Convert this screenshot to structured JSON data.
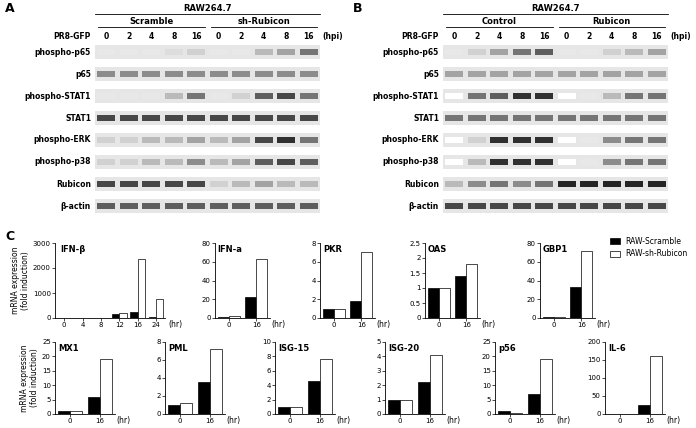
{
  "blots": [
    {
      "label": "A",
      "cell_line": "RAW264.7",
      "groups": [
        "Scramble",
        "sh-Rubicon"
      ],
      "treatment": "PR8-GFP",
      "timepoints": [
        "0",
        "2",
        "4",
        "8",
        "16"
      ],
      "time_unit": "(hpi)",
      "rows": [
        {
          "name": "phospho-p65",
          "intensity": [
            0.1,
            0.1,
            0.1,
            0.15,
            0.2,
            0.1,
            0.1,
            0.3,
            0.4,
            0.6
          ]
        },
        {
          "name": "p65",
          "intensity": [
            0.5,
            0.5,
            0.5,
            0.5,
            0.5,
            0.5,
            0.5,
            0.5,
            0.5,
            0.5
          ]
        },
        {
          "name": "phospho-STAT1",
          "intensity": [
            0.1,
            0.1,
            0.1,
            0.3,
            0.6,
            0.1,
            0.2,
            0.7,
            0.8,
            0.6
          ]
        },
        {
          "name": "STAT1",
          "intensity": [
            0.8,
            0.8,
            0.8,
            0.8,
            0.8,
            0.8,
            0.8,
            0.8,
            0.8,
            0.8
          ]
        },
        {
          "name": "phospho-ERK",
          "intensity": [
            0.2,
            0.2,
            0.3,
            0.3,
            0.4,
            0.3,
            0.4,
            0.8,
            0.9,
            0.6
          ]
        },
        {
          "name": "phospho-p38",
          "intensity": [
            0.2,
            0.2,
            0.3,
            0.3,
            0.5,
            0.3,
            0.4,
            0.7,
            0.8,
            0.7
          ]
        },
        {
          "name": "Rubicon",
          "intensity": [
            0.8,
            0.8,
            0.8,
            0.8,
            0.8,
            0.2,
            0.3,
            0.4,
            0.3,
            0.3
          ]
        },
        {
          "name": "β-actin",
          "intensity": [
            0.7,
            0.7,
            0.7,
            0.7,
            0.7,
            0.7,
            0.7,
            0.7,
            0.7,
            0.7
          ]
        }
      ]
    },
    {
      "label": "B",
      "cell_line": "RAW264.7",
      "groups": [
        "Control",
        "Rubicon"
      ],
      "treatment": "PR8-GFP",
      "timepoints": [
        "0",
        "2",
        "4",
        "8",
        "16"
      ],
      "time_unit": "(hpi)",
      "rows": [
        {
          "name": "phospho-p65",
          "intensity": [
            0.1,
            0.2,
            0.4,
            0.6,
            0.7,
            0.1,
            0.1,
            0.2,
            0.3,
            0.4
          ]
        },
        {
          "name": "p65",
          "intensity": [
            0.4,
            0.4,
            0.4,
            0.4,
            0.4,
            0.4,
            0.4,
            0.4,
            0.4,
            0.4
          ]
        },
        {
          "name": "phospho-STAT1",
          "intensity": [
            0.0,
            0.6,
            0.7,
            0.9,
            0.9,
            0.0,
            0.1,
            0.3,
            0.6,
            0.6
          ]
        },
        {
          "name": "STAT1",
          "intensity": [
            0.6,
            0.6,
            0.6,
            0.6,
            0.6,
            0.6,
            0.6,
            0.6,
            0.6,
            0.6
          ]
        },
        {
          "name": "phospho-ERK",
          "intensity": [
            0.0,
            0.2,
            0.9,
            0.9,
            0.9,
            0.0,
            0.1,
            0.5,
            0.6,
            0.6
          ]
        },
        {
          "name": "phospho-p38",
          "intensity": [
            0.0,
            0.3,
            0.9,
            0.9,
            0.9,
            0.0,
            0.1,
            0.5,
            0.6,
            0.6
          ]
        },
        {
          "name": "Rubicon",
          "intensity": [
            0.3,
            0.5,
            0.6,
            0.5,
            0.6,
            0.95,
            0.95,
            0.95,
            0.95,
            0.95
          ]
        },
        {
          "name": "β-actin",
          "intensity": [
            0.8,
            0.8,
            0.8,
            0.8,
            0.8,
            0.8,
            0.8,
            0.8,
            0.8,
            0.8
          ]
        }
      ]
    }
  ],
  "chart_panel_label": "C",
  "chart_data": [
    {
      "type": "bar",
      "title": "IFN-β",
      "x_label": "(hr)",
      "y_label": "mRNA expression\n(fold induction)",
      "legend": "upper right",
      "categories": [
        "0",
        "4",
        "8",
        "12",
        "16",
        "24"
      ],
      "ylim": [
        0,
        3000
      ],
      "yticks": [
        0,
        1000,
        2000,
        3000
      ],
      "series": [
        {
          "name": "RAW-Scramble",
          "color": "#000000",
          "values": [
            0,
            0,
            10,
            150,
            230,
            50
          ]
        },
        {
          "name": "RAW-sh-Rubicon",
          "color": "#ffffff",
          "values": [
            0,
            0,
            20,
            200,
            2350,
            750
          ]
        }
      ]
    },
    {
      "type": "bar",
      "title": "IFN-a",
      "x_label": "(hr)",
      "categories": [
        "0",
        "16"
      ],
      "ylim": [
        0,
        80
      ],
      "yticks": [
        0,
        20,
        40,
        60,
        80
      ],
      "series": [
        {
          "name": "RAW-Scramble",
          "color": "#000000",
          "values": [
            1,
            22
          ]
        },
        {
          "name": "RAW-sh-Rubicon",
          "color": "#ffffff",
          "values": [
            2,
            63
          ]
        }
      ]
    },
    {
      "type": "bar",
      "title": "PKR",
      "x_label": "(hr)",
      "categories": [
        "0",
        "16"
      ],
      "ylim": [
        0,
        8
      ],
      "yticks": [
        0,
        2,
        4,
        6,
        8
      ],
      "series": [
        {
          "name": "RAW-Scramble",
          "color": "#000000",
          "values": [
            1,
            1.8
          ]
        },
        {
          "name": "RAW-sh-Rubicon",
          "color": "#ffffff",
          "values": [
            1,
            7
          ]
        }
      ]
    },
    {
      "type": "bar",
      "title": "OAS",
      "x_label": "(hr)",
      "categories": [
        "0",
        "16"
      ],
      "ylim": [
        0,
        2.5
      ],
      "yticks": [
        0,
        0.5,
        1,
        1.5,
        2,
        2.5
      ],
      "series": [
        {
          "name": "RAW-Scramble",
          "color": "#000000",
          "values": [
            1.0,
            1.4
          ]
        },
        {
          "name": "RAW-sh-Rubicon",
          "color": "#ffffff",
          "values": [
            1.0,
            1.8
          ]
        }
      ]
    },
    {
      "type": "bar",
      "title": "GBP1",
      "x_label": "(hr)",
      "categories": [
        "0",
        "16"
      ],
      "ylim": [
        0,
        80
      ],
      "yticks": [
        0,
        20,
        40,
        60,
        80
      ],
      "series": [
        {
          "name": "RAW-Scramble",
          "color": "#000000",
          "values": [
            1,
            33
          ]
        },
        {
          "name": "RAW-sh-Rubicon",
          "color": "#ffffff",
          "values": [
            1,
            72
          ]
        }
      ]
    },
    {
      "type": "bar",
      "title": "MX1",
      "x_label": "(hr)",
      "y_label": "mRNA expression\n(fold induction)",
      "categories": [
        "0",
        "16"
      ],
      "ylim": [
        0,
        25
      ],
      "yticks": [
        0,
        5,
        10,
        15,
        20,
        25
      ],
      "series": [
        {
          "name": "RAW-Scramble",
          "color": "#000000",
          "values": [
            1,
            6
          ]
        },
        {
          "name": "RAW-sh-Rubicon",
          "color": "#ffffff",
          "values": [
            1,
            19
          ]
        }
      ]
    },
    {
      "type": "bar",
      "title": "PML",
      "x_label": "(hr)",
      "categories": [
        "0",
        "16"
      ],
      "ylim": [
        0,
        8
      ],
      "yticks": [
        0,
        2,
        4,
        6,
        8
      ],
      "series": [
        {
          "name": "RAW-Scramble",
          "color": "#000000",
          "values": [
            1,
            3.6
          ]
        },
        {
          "name": "RAW-sh-Rubicon",
          "color": "#ffffff",
          "values": [
            1.2,
            7.2
          ]
        }
      ]
    },
    {
      "type": "bar",
      "title": "ISG-15",
      "x_label": "(hr)",
      "categories": [
        "0",
        "16"
      ],
      "ylim": [
        0,
        10
      ],
      "yticks": [
        0,
        2,
        4,
        6,
        8,
        10
      ],
      "series": [
        {
          "name": "RAW-Scramble",
          "color": "#000000",
          "values": [
            1,
            4.6
          ]
        },
        {
          "name": "RAW-sh-Rubicon",
          "color": "#ffffff",
          "values": [
            1,
            7.6
          ]
        }
      ]
    },
    {
      "type": "bar",
      "title": "ISG-20",
      "x_label": "(hr)",
      "categories": [
        "0",
        "16"
      ],
      "ylim": [
        0,
        5
      ],
      "yticks": [
        0,
        1,
        2,
        3,
        4,
        5
      ],
      "series": [
        {
          "name": "RAW-Scramble",
          "color": "#000000",
          "values": [
            1,
            2.2
          ]
        },
        {
          "name": "RAW-sh-Rubicon",
          "color": "#ffffff",
          "values": [
            1,
            4.1
          ]
        }
      ]
    },
    {
      "type": "bar",
      "title": "p56",
      "x_label": "(hr)",
      "categories": [
        "0",
        "16"
      ],
      "ylim": [
        0,
        25
      ],
      "yticks": [
        0,
        5,
        10,
        15,
        20,
        25
      ],
      "series": [
        {
          "name": "RAW-Scramble",
          "color": "#000000",
          "values": [
            1,
            7
          ]
        },
        {
          "name": "RAW-sh-Rubicon",
          "color": "#ffffff",
          "values": [
            0.3,
            19
          ]
        }
      ]
    },
    {
      "type": "bar",
      "title": "IL-6",
      "x_label": "(hr)",
      "categories": [
        "0",
        "16"
      ],
      "ylim": [
        0,
        200
      ],
      "yticks": [
        0,
        50,
        100,
        150,
        200
      ],
      "series": [
        {
          "name": "RAW-Scramble",
          "color": "#000000",
          "values": [
            1,
            25
          ]
        },
        {
          "name": "RAW-sh-Rubicon",
          "color": "#ffffff",
          "values": [
            1,
            160
          ]
        }
      ]
    }
  ]
}
